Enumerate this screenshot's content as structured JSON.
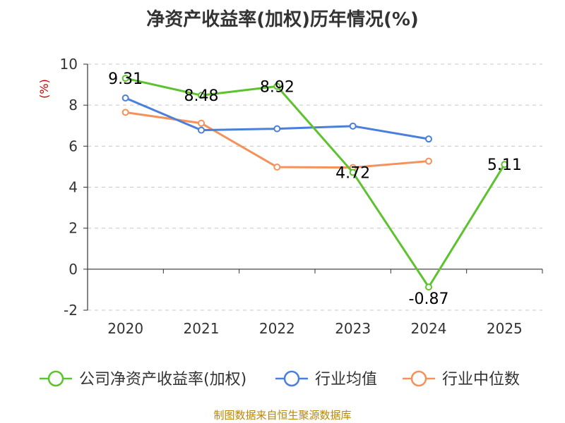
{
  "chart_data": {
    "type": "line",
    "title": "净资产收益率(加权)历年情况(%)",
    "ylabel": "(%)",
    "categories": [
      "2020",
      "2021",
      "2022",
      "2023",
      "2024",
      "2025"
    ],
    "ylim": [
      -2,
      10
    ],
    "yticks": [
      -2,
      0,
      2,
      4,
      6,
      8,
      10
    ],
    "grid": true,
    "legend_position": "bottom",
    "series": [
      {
        "name": "公司净资产收益率(加权)",
        "color": "#5cc22e",
        "values": [
          9.31,
          8.48,
          8.92,
          4.72,
          -0.87,
          5.11
        ],
        "labels": [
          "9.31",
          "8.48",
          "8.92",
          "4.72",
          "-0.87",
          "5.11"
        ]
      },
      {
        "name": "行业均值",
        "color": "#4a7fdc",
        "values": [
          8.35,
          6.78,
          6.85,
          6.98,
          6.35,
          null
        ]
      },
      {
        "name": "行业中位数",
        "color": "#f5915a",
        "values": [
          7.65,
          7.12,
          4.98,
          4.96,
          5.27,
          null
        ]
      }
    ]
  },
  "source": "制图数据来自恒生聚源数据库"
}
